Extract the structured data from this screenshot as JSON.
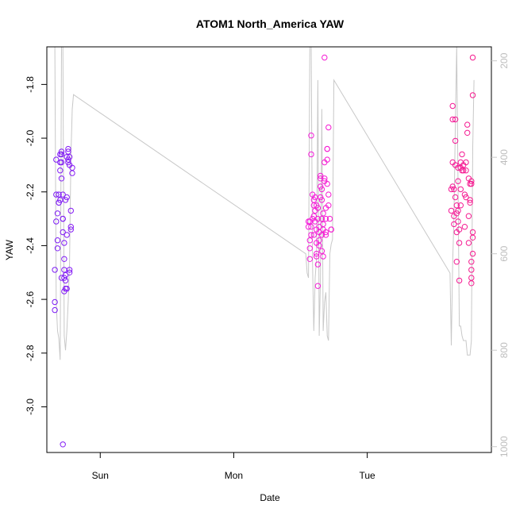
{
  "chart_data": {
    "type": "scatter",
    "title": "ATOM1 North_America YAW",
    "xlabel": "Date",
    "ylabel": "YAW",
    "x_ticks": [
      "Sun",
      "Mon",
      "Tue"
    ],
    "x_tick_values": [
      1.0,
      2.0,
      3.0
    ],
    "xlim": [
      0.6,
      3.93
    ],
    "ylim": [
      -3.17,
      -1.66
    ],
    "y_ticks": [
      -3.0,
      -2.8,
      -2.6,
      -2.4,
      -2.2,
      -2.0,
      -1.8
    ],
    "y2_ticks": [
      1000,
      800,
      600,
      400,
      200
    ],
    "y2lim": [
      1012,
      171
    ],
    "y2_color": "#c8c8c8",
    "grid": false,
    "point_color_ramp": [
      "#7d1cf5",
      "#f51cf0",
      "#f51a8e"
    ],
    "series": [
      {
        "marker": "open-circle",
        "points": [
          [
            0.66,
            -2.61
          ],
          [
            0.66,
            -2.64
          ],
          [
            0.66,
            -2.49
          ],
          [
            0.67,
            -2.21
          ],
          [
            0.67,
            -2.31
          ],
          [
            0.67,
            -2.08
          ],
          [
            0.68,
            -2.41
          ],
          [
            0.68,
            -2.38
          ],
          [
            0.68,
            -2.28
          ],
          [
            0.69,
            -2.24
          ],
          [
            0.69,
            -2.24
          ],
          [
            0.7,
            -2.23
          ],
          [
            0.7,
            -2.09
          ],
          [
            0.71,
            -2.15
          ],
          [
            0.71,
            -2.06
          ],
          [
            0.71,
            -2.05
          ],
          [
            0.72,
            -2.21
          ],
          [
            0.72,
            -2.3
          ],
          [
            0.72,
            -2.35
          ],
          [
            0.72,
            -2.3
          ],
          [
            0.73,
            -2.45
          ],
          [
            0.73,
            -2.39
          ],
          [
            0.73,
            -2.49
          ],
          [
            0.73,
            -2.57
          ],
          [
            0.74,
            -2.56
          ],
          [
            0.74,
            -2.53
          ],
          [
            0.74,
            -2.51
          ],
          [
            0.74,
            -2.23
          ],
          [
            0.75,
            -2.22
          ],
          [
            0.75,
            -2.56
          ],
          [
            0.75,
            -2.36
          ],
          [
            0.75,
            -2.07
          ],
          [
            0.76,
            -2.05
          ],
          [
            0.76,
            -2.04
          ],
          [
            0.76,
            -2.08
          ],
          [
            0.77,
            -2.1
          ],
          [
            0.77,
            -2.07
          ],
          [
            0.77,
            -2.49
          ],
          [
            0.77,
            -2.5
          ],
          [
            0.78,
            -2.27
          ],
          [
            0.78,
            -2.34
          ],
          [
            0.78,
            -2.33
          ],
          [
            0.79,
            -2.11
          ],
          [
            0.79,
            -2.13
          ],
          [
            0.72,
            -3.14
          ],
          [
            0.71,
            -2.09
          ],
          [
            0.7,
            -2.06
          ],
          [
            0.69,
            -2.21
          ],
          [
            0.7,
            -2.12
          ],
          [
            0.76,
            -2.09
          ],
          [
            0.73,
            -2.52
          ],
          [
            0.71,
            -2.52
          ],
          [
            2.56,
            -2.31
          ],
          [
            2.56,
            -2.33
          ],
          [
            2.57,
            -2.41
          ],
          [
            2.57,
            -2.38
          ],
          [
            2.57,
            -2.45
          ],
          [
            2.57,
            -2.31
          ],
          [
            2.58,
            -2.33
          ],
          [
            2.58,
            -2.36
          ],
          [
            2.58,
            -2.06
          ],
          [
            2.58,
            -1.99
          ],
          [
            2.59,
            -2.21
          ],
          [
            2.59,
            -2.3
          ],
          [
            2.6,
            -2.25
          ],
          [
            2.6,
            -2.36
          ],
          [
            2.6,
            -2.29
          ],
          [
            2.6,
            -2.23
          ],
          [
            2.61,
            -2.22
          ],
          [
            2.61,
            -2.27
          ],
          [
            2.61,
            -2.31
          ],
          [
            2.62,
            -2.44
          ],
          [
            2.62,
            -2.43
          ],
          [
            2.62,
            -2.39
          ],
          [
            2.62,
            -2.34
          ],
          [
            2.63,
            -2.47
          ],
          [
            2.63,
            -2.55
          ],
          [
            2.63,
            -2.3
          ],
          [
            2.63,
            -2.26
          ],
          [
            2.64,
            -2.35
          ],
          [
            2.64,
            -2.33
          ],
          [
            2.64,
            -2.4
          ],
          [
            2.64,
            -2.38
          ],
          [
            2.65,
            -2.18
          ],
          [
            2.65,
            -2.15
          ],
          [
            2.65,
            -2.14
          ],
          [
            2.65,
            -2.22
          ],
          [
            2.66,
            -2.23
          ],
          [
            2.66,
            -2.19
          ],
          [
            2.66,
            -2.36
          ],
          [
            2.66,
            -2.42
          ],
          [
            2.67,
            -2.44
          ],
          [
            2.67,
            -2.28
          ],
          [
            2.67,
            -2.32
          ],
          [
            2.67,
            -2.34
          ],
          [
            2.68,
            -2.16
          ],
          [
            2.68,
            -2.15
          ],
          [
            2.68,
            -2.09
          ],
          [
            2.68,
            -1.7
          ],
          [
            2.69,
            -2.36
          ],
          [
            2.69,
            -2.26
          ],
          [
            2.69,
            -2.3
          ],
          [
            2.69,
            -2.35
          ],
          [
            2.7,
            -2.17
          ],
          [
            2.7,
            -2.04
          ],
          [
            2.7,
            -2.04
          ],
          [
            2.7,
            -2.08
          ],
          [
            2.71,
            -2.21
          ],
          [
            2.71,
            -2.25
          ],
          [
            2.71,
            -1.96
          ],
          [
            2.73,
            -2.34
          ],
          [
            2.73,
            -2.34
          ],
          [
            2.72,
            -2.3
          ],
          [
            2.62,
            -2.25
          ],
          [
            2.66,
            -2.3
          ],
          [
            3.63,
            -2.27
          ],
          [
            3.63,
            -2.19
          ],
          [
            3.64,
            -2.09
          ],
          [
            3.64,
            -1.88
          ],
          [
            3.64,
            -1.93
          ],
          [
            3.64,
            -2.18
          ],
          [
            3.65,
            -2.29
          ],
          [
            3.65,
            -2.32
          ],
          [
            3.65,
            -2.19
          ],
          [
            3.66,
            -1.93
          ],
          [
            3.66,
            -2.01
          ],
          [
            3.66,
            -2.1
          ],
          [
            3.66,
            -2.22
          ],
          [
            3.67,
            -2.25
          ],
          [
            3.67,
            -2.28
          ],
          [
            3.67,
            -2.35
          ],
          [
            3.67,
            -2.46
          ],
          [
            3.68,
            -2.31
          ],
          [
            3.68,
            -2.27
          ],
          [
            3.68,
            -2.16
          ],
          [
            3.68,
            -2.11
          ],
          [
            3.69,
            -2.39
          ],
          [
            3.69,
            -2.53
          ],
          [
            3.69,
            -2.34
          ],
          [
            3.7,
            -2.25
          ],
          [
            3.7,
            -2.19
          ],
          [
            3.7,
            -2.11
          ],
          [
            3.7,
            -2.09
          ],
          [
            3.71,
            -2.12
          ],
          [
            3.71,
            -2.06
          ],
          [
            3.72,
            -2.1
          ],
          [
            3.72,
            -2.12
          ],
          [
            3.73,
            -2.21
          ],
          [
            3.73,
            -2.33
          ],
          [
            3.74,
            -2.12
          ],
          [
            3.74,
            -2.09
          ],
          [
            3.75,
            -1.98
          ],
          [
            3.75,
            -1.95
          ],
          [
            3.76,
            -2.29
          ],
          [
            3.76,
            -2.39
          ],
          [
            3.76,
            -2.15
          ],
          [
            3.77,
            -2.23
          ],
          [
            3.77,
            -2.17
          ],
          [
            3.78,
            -2.16
          ],
          [
            3.78,
            -2.17
          ],
          [
            3.78,
            -2.52
          ],
          [
            3.78,
            -2.49
          ],
          [
            3.78,
            -2.54
          ],
          [
            3.78,
            -2.46
          ],
          [
            3.79,
            -2.37
          ],
          [
            3.79,
            -2.43
          ],
          [
            3.79,
            -1.84
          ],
          [
            3.79,
            -1.7
          ],
          [
            3.79,
            -2.35
          ],
          [
            3.77,
            -2.24
          ],
          [
            3.74,
            -2.22
          ]
        ]
      }
    ],
    "secondary_series": {
      "type": "line",
      "axis": "right",
      "color": "#c8c8c8",
      "values": [
        [
          0.66,
          170
        ],
        [
          0.67,
          700
        ],
        [
          0.68,
          760
        ],
        [
          0.69,
          775
        ],
        [
          0.7,
          820
        ],
        [
          0.71,
          170
        ],
        [
          0.72,
          160
        ],
        [
          0.73,
          770
        ],
        [
          0.74,
          800
        ],
        [
          0.75,
          760
        ],
        [
          0.76,
          700
        ],
        [
          0.77,
          620
        ],
        [
          0.78,
          400
        ],
        [
          0.79,
          300
        ],
        [
          0.8,
          270
        ],
        [
          2.54,
          600
        ],
        [
          2.55,
          640
        ],
        [
          2.56,
          650
        ],
        [
          2.57,
          160
        ],
        [
          2.58,
          170
        ],
        [
          2.59,
          620
        ],
        [
          2.6,
          760
        ],
        [
          2.61,
          650
        ],
        [
          2.62,
          610
        ],
        [
          2.63,
          240
        ],
        [
          2.64,
          770
        ],
        [
          2.65,
          650
        ],
        [
          2.66,
          300
        ],
        [
          2.67,
          760
        ],
        [
          2.68,
          700
        ],
        [
          2.69,
          680
        ],
        [
          2.7,
          770
        ],
        [
          2.71,
          780
        ],
        [
          2.72,
          600
        ],
        [
          2.73,
          580
        ],
        [
          2.74,
          570
        ],
        [
          2.75,
          240
        ],
        [
          3.62,
          640
        ],
        [
          3.63,
          790
        ],
        [
          3.64,
          620
        ],
        [
          3.65,
          520
        ],
        [
          3.66,
          330
        ],
        [
          3.67,
          170
        ],
        [
          3.68,
          460
        ],
        [
          3.69,
          750
        ],
        [
          3.7,
          750
        ],
        [
          3.71,
          770
        ],
        [
          3.72,
          780
        ],
        [
          3.73,
          780
        ],
        [
          3.74,
          780
        ],
        [
          3.75,
          810
        ],
        [
          3.76,
          810
        ],
        [
          3.77,
          810
        ],
        [
          3.78,
          780
        ],
        [
          3.79,
          380
        ],
        [
          3.8,
          240
        ]
      ]
    }
  }
}
